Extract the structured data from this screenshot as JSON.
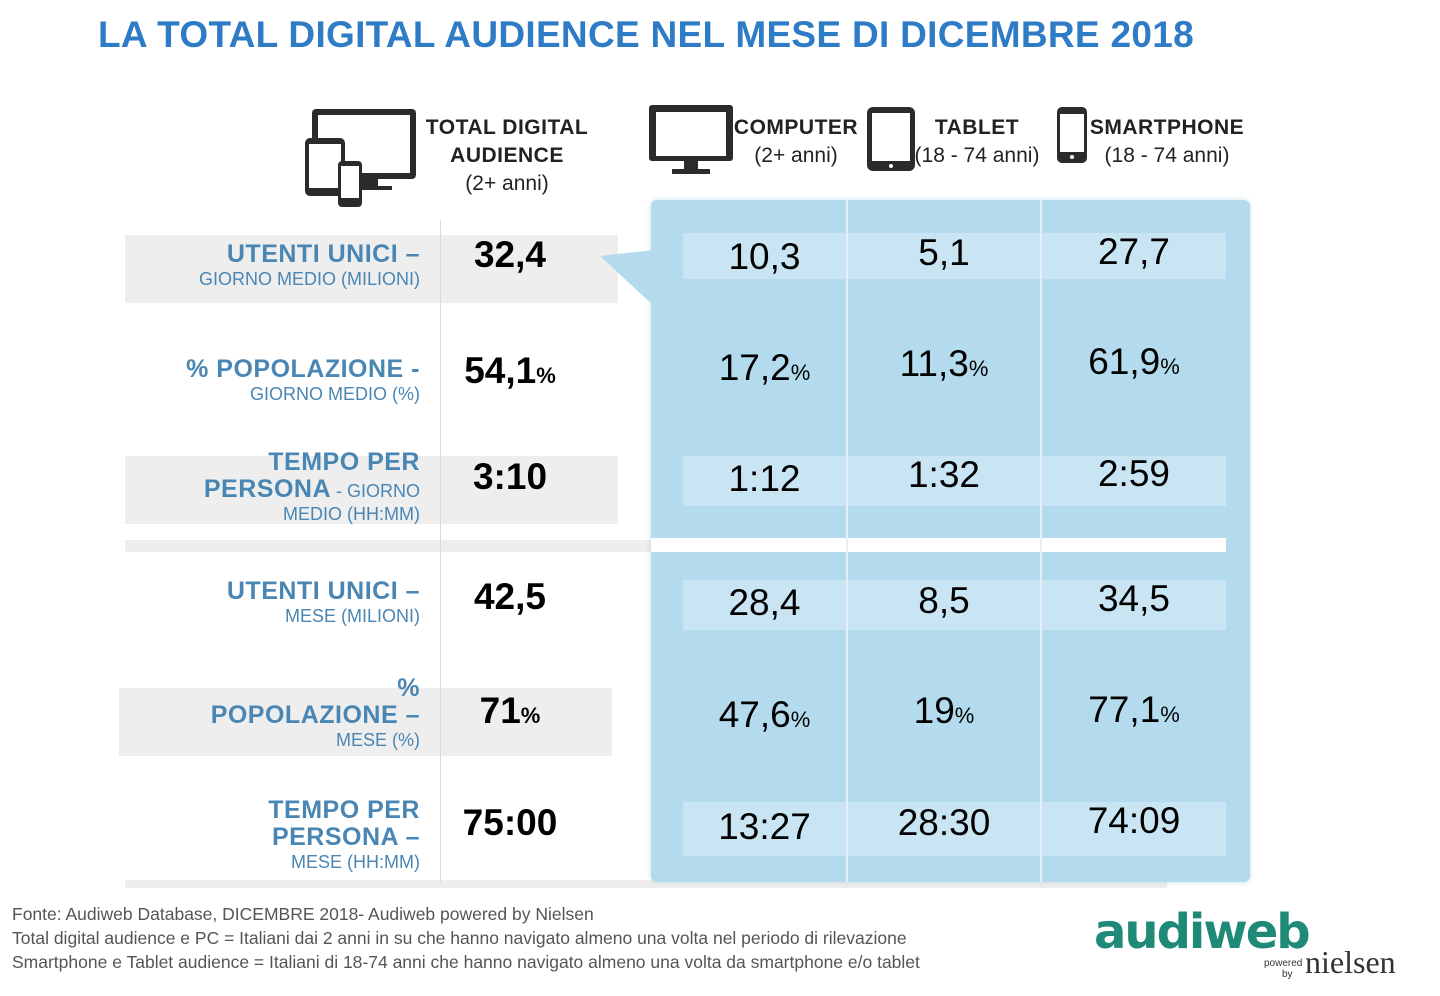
{
  "title": "LA TOTAL DIGITAL AUDIENCE NEL MESE DI DICEMBRE 2018",
  "columns": {
    "total": {
      "l1": "TOTAL DIGITAL",
      "l2": "AUDIENCE",
      "l3": "(2+ anni)"
    },
    "computer": {
      "l1": "COMPUTER",
      "l2": "(2+ anni)"
    },
    "tablet": {
      "l1": "TABLET",
      "l2": "(18 - 74 anni)"
    },
    "smartphone": {
      "l1": "SMARTPHONE",
      "l2": "(18 - 74 anni)"
    }
  },
  "rows": [
    {
      "main": "UTENTI UNICI –",
      "sub": "GIORNO MEDIO (MILIONI)",
      "total": "32,4",
      "computer": "10,3",
      "tablet": "5,1",
      "smartphone": "27,7"
    },
    {
      "main": "% POPOLAZIONE -",
      "sub": "GIORNO MEDIO (%)",
      "total": "54,1",
      "computer": "17,2",
      "tablet": "11,3",
      "smartphone": "61,9"
    },
    {
      "main1": "TEMPO PER",
      "main2": "PERSONA",
      "main2_tail": " - GIORNO",
      "sub": "MEDIO (HH:MM)",
      "total": "3:10",
      "computer": "1:12",
      "tablet": "1:32",
      "smartphone": "2:59"
    },
    {
      "main": "UTENTI UNICI –",
      "sub": "MESE (MILIONI)",
      "total": "42,5",
      "computer": "28,4",
      "tablet": "8,5",
      "smartphone": "34,5"
    },
    {
      "main1": "%",
      "main2": "POPOLAZIONE –",
      "sub": "MESE (%)",
      "total": "71",
      "computer": "47,6",
      "tablet": "19",
      "smartphone": "77,1"
    },
    {
      "main1": "TEMPO PER",
      "main2": "PERSONA –",
      "sub": "MESE (HH:MM)",
      "total": "75:00",
      "computer": "13:27",
      "tablet": "28:30",
      "smartphone": "74:09"
    }
  ],
  "pct_sign": "%",
  "footer": [
    "Fonte: Audiweb Database, DICEMBRE 2018- Audiweb powered by Nielsen",
    "Total digital audience e PC = Italiani dai 2 anni in su che hanno navigato almeno una volta nel periodo di rilevazione",
    "Smartphone e Tablet audience = Italiani di 18-74 anni che hanno navigato almeno una volta da smartphone e/o tablet"
  ],
  "logo": {
    "audiweb": "audiweb",
    "powered": "powered",
    "by": "by",
    "nielsen": "nielsen"
  },
  "colors": {
    "title": "#2e7bc6",
    "label": "#4a86b3",
    "panel": "#b3dbed",
    "strip": "#c9e5f3"
  }
}
